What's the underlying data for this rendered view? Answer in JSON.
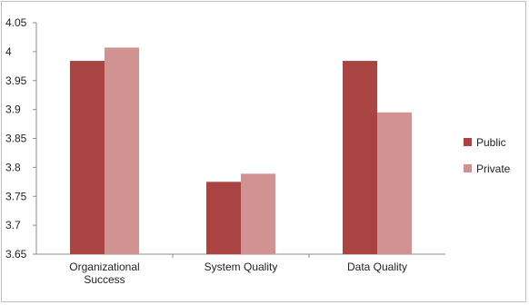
{
  "chart_data": {
    "type": "bar",
    "title": "",
    "xlabel": "",
    "ylabel": "",
    "categories": [
      [
        "Organizational",
        "Success"
      ],
      [
        "System Quality"
      ],
      [
        "Data Quality"
      ]
    ],
    "series": [
      {
        "name": "Public",
        "color": "#a94442",
        "values": [
          3.984,
          3.775,
          3.984
        ]
      },
      {
        "name": "Private",
        "color": "#d19391",
        "values": [
          4.007,
          3.789,
          3.895
        ]
      }
    ],
    "ylim": [
      3.65,
      4.05
    ],
    "yticks": [
      "4.05",
      "4",
      "3.95",
      "3.9",
      "3.85",
      "3.8",
      "3.75",
      "3.7",
      "3.65"
    ],
    "grid": false,
    "legend": "right"
  }
}
